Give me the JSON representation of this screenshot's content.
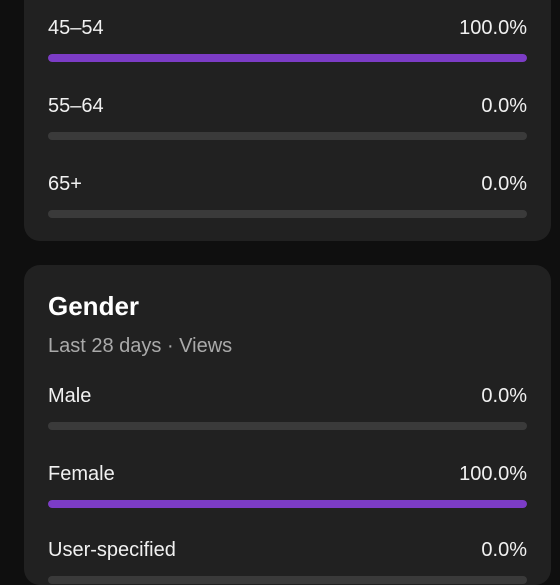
{
  "age": {
    "rows": [
      {
        "label": "45–54",
        "value": "100.0%",
        "fraction": 1.0
      },
      {
        "label": "55–64",
        "value": "0.0%",
        "fraction": 0.0
      },
      {
        "label": "65+",
        "value": "0.0%",
        "fraction": 0.0
      }
    ]
  },
  "gender": {
    "title": "Gender",
    "subtitle": "Last 28 days · Views",
    "rows": [
      {
        "label": "Male",
        "value": "0.0%",
        "fraction": 0.0
      },
      {
        "label": "Female",
        "value": "100.0%",
        "fraction": 1.0
      },
      {
        "label": "User-specified",
        "value": "0.0%",
        "fraction": 0.0
      }
    ]
  },
  "colors": {
    "accent": "#7c3cc6",
    "track": "#3a3a3a",
    "card": "#212121",
    "background": "#0f0f0f"
  }
}
